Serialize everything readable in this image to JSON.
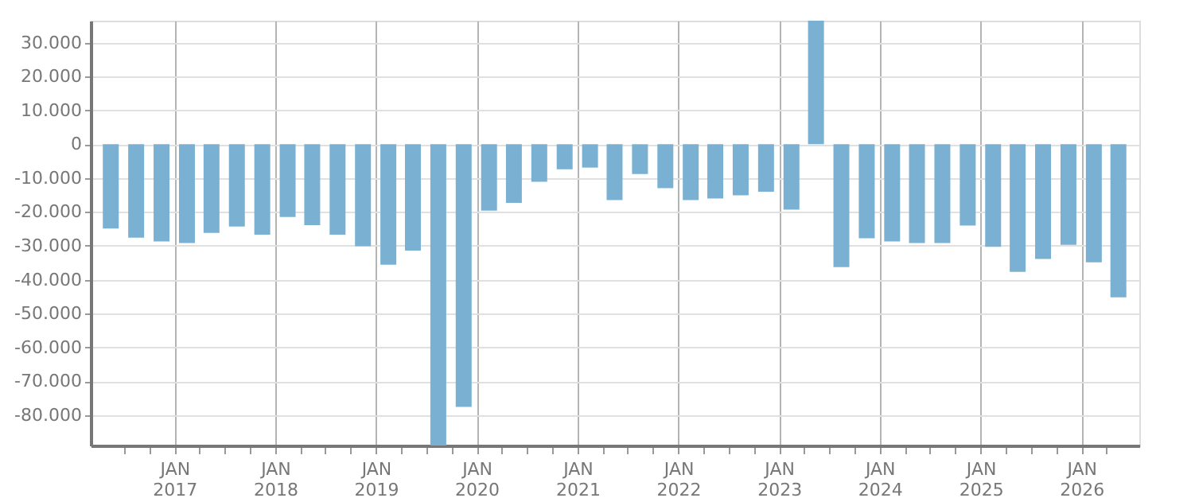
{
  "chart_data": {
    "type": "bar",
    "x": [
      "2016-05-15",
      "2016-08-15",
      "2016-11-15",
      "2017-02-15",
      "2017-05-15",
      "2017-08-15",
      "2017-11-15",
      "2018-02-15",
      "2018-05-15",
      "2018-08-15",
      "2018-11-15",
      "2019-02-15",
      "2019-05-15",
      "2019-08-15",
      "2019-11-15",
      "2020-02-15",
      "2020-05-15",
      "2020-08-15",
      "2020-11-15",
      "2021-02-15",
      "2021-05-15",
      "2021-08-15",
      "2021-11-15",
      "2022-02-15",
      "2022-05-15",
      "2022-08-15",
      "2022-11-15",
      "2023-02-15",
      "2023-05-15",
      "2023-08-15",
      "2023-11-15",
      "2024-02-15",
      "2024-05-15",
      "2024-08-15",
      "2024-11-15",
      "2025-02-15",
      "2025-05-15",
      "2025-08-15",
      "2025-11-15",
      "2026-02-15",
      "2026-05-15"
    ],
    "values": [
      -24900,
      -27600,
      -28700,
      -29200,
      -26200,
      -24300,
      -26700,
      -21500,
      -23900,
      -26700,
      -30100,
      -35600,
      -31400,
      -89000,
      -77600,
      -19600,
      -17300,
      -11100,
      -7400,
      -6900,
      -16500,
      -8800,
      -13000,
      -16500,
      -16000,
      -15100,
      -14000,
      -19300,
      36500,
      -36300,
      -27800,
      -28700,
      -29200,
      -29200,
      -24000,
      -30300,
      -37700,
      -33900,
      -29700,
      -34900,
      -45200
    ],
    "color": "#7ab1d2",
    "xlim": [
      "2016-04-01",
      "2026-07-01"
    ],
    "xticks": [
      {
        "value": "2016-07-01",
        "label": null
      },
      {
        "value": "2016-10-01",
        "label": null
      },
      {
        "value": "2017-01-01",
        "label": "JAN 2017"
      },
      {
        "value": "2017-04-01",
        "label": null
      },
      {
        "value": "2017-07-01",
        "label": null
      },
      {
        "value": "2017-10-01",
        "label": null
      },
      {
        "value": "2018-01-01",
        "label": "JAN 2018"
      },
      {
        "value": "2018-04-01",
        "label": null
      },
      {
        "value": "2018-07-01",
        "label": null
      },
      {
        "value": "2018-10-01",
        "label": null
      },
      {
        "value": "2019-01-01",
        "label": "JAN 2019"
      },
      {
        "value": "2019-04-01",
        "label": null
      },
      {
        "value": "2019-07-01",
        "label": null
      },
      {
        "value": "2019-10-01",
        "label": null
      },
      {
        "value": "2020-01-01",
        "label": "JAN 2020"
      },
      {
        "value": "2020-04-01",
        "label": null
      },
      {
        "value": "2020-07-01",
        "label": null
      },
      {
        "value": "2020-10-01",
        "label": null
      },
      {
        "value": "2021-01-01",
        "label": "JAN 2021"
      },
      {
        "value": "2021-04-01",
        "label": null
      },
      {
        "value": "2021-07-01",
        "label": null
      },
      {
        "value": "2021-10-01",
        "label": null
      },
      {
        "value": "2022-01-01",
        "label": "JAN 2022"
      },
      {
        "value": "2022-04-01",
        "label": null
      },
      {
        "value": "2022-07-01",
        "label": null
      },
      {
        "value": "2022-10-01",
        "label": null
      },
      {
        "value": "2023-01-01",
        "label": "JAN 2023"
      },
      {
        "value": "2023-04-01",
        "label": null
      },
      {
        "value": "2023-07-01",
        "label": null
      },
      {
        "value": "2023-10-01",
        "label": null
      },
      {
        "value": "2024-01-01",
        "label": "JAN 2024"
      },
      {
        "value": "2024-04-01",
        "label": null
      },
      {
        "value": "2024-07-01",
        "label": null
      },
      {
        "value": "2024-10-01",
        "label": null
      },
      {
        "value": "2025-01-01",
        "label": "JAN 2025"
      },
      {
        "value": "2025-04-01",
        "label": null
      },
      {
        "value": "2025-07-01",
        "label": null
      },
      {
        "value": "2025-10-01",
        "label": null
      },
      {
        "value": "2026-01-01",
        "label": "JAN 2026"
      },
      {
        "value": "2026-04-01",
        "label": null
      }
    ],
    "ylim": [
      -89000,
      36500
    ],
    "yticks": [
      {
        "value": -80000,
        "label": "-80.000"
      },
      {
        "value": -70000,
        "label": "-70.000"
      },
      {
        "value": -60000,
        "label": "-60.000"
      },
      {
        "value": -50000,
        "label": "-50.000"
      },
      {
        "value": -40000,
        "label": "-40.000"
      },
      {
        "value": -30000,
        "label": "-30.000"
      },
      {
        "value": -20000,
        "label": "-20.000"
      },
      {
        "value": -10000,
        "label": "-10.000"
      },
      0,
      {
        "value": 10000,
        "label": "10.000"
      },
      {
        "value": 20000,
        "label": "20.000"
      },
      {
        "value": 30000,
        "label": "30.000"
      }
    ],
    "grid": true
  }
}
